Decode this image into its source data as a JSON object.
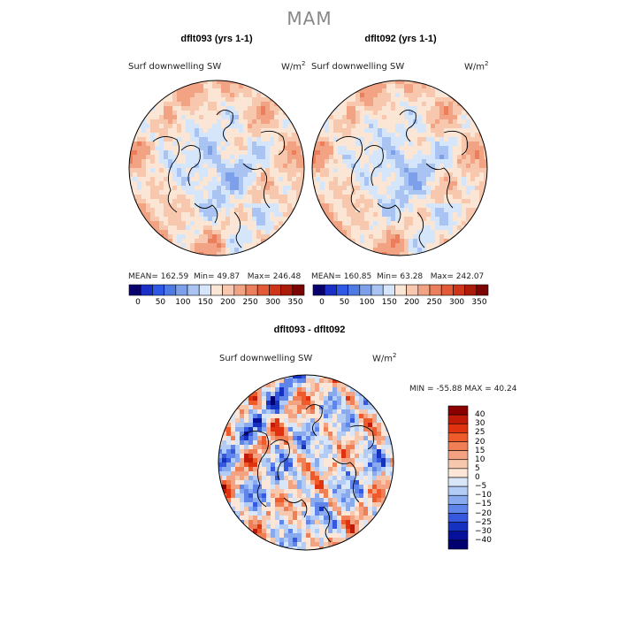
{
  "figure": {
    "title": "MAM"
  },
  "chart_data": [
    {
      "type": "heatmap",
      "projection": "polar-stereographic",
      "title": "dflt093 (yrs 1-1)",
      "variable": "Surf downwelling SW",
      "units_base": "W/m",
      "units_exp": "2",
      "stats": {
        "mean_label": "MEAN=",
        "mean": "162.59",
        "min_label": "Min=",
        "min": "49.87",
        "max_label": "Max=",
        "max": "246.48"
      },
      "colorbar": {
        "orientation": "horizontal",
        "levels": [
          0,
          25,
          50,
          75,
          100,
          125,
          150,
          175,
          200,
          225,
          250,
          275,
          300,
          325,
          350
        ],
        "tick_labels": [
          "0",
          "50",
          "100",
          "150",
          "200",
          "250",
          "300",
          "350"
        ],
        "colors": [
          "#08006e",
          "#1a2fc8",
          "#2d58e8",
          "#4f7ae6",
          "#7da0ea",
          "#a9c4f2",
          "#d6e6fa",
          "#fbe6d6",
          "#f7c8ad",
          "#f1a384",
          "#ec7e5c",
          "#e25a38",
          "#cf3619",
          "#ac1a0a",
          "#7d0404"
        ]
      }
    },
    {
      "type": "heatmap",
      "projection": "polar-stereographic",
      "title": "dflt092 (yrs 1-1)",
      "variable": "Surf downwelling SW",
      "units_base": "W/m",
      "units_exp": "2",
      "stats": {
        "mean_label": "MEAN=",
        "mean": "160.85",
        "min_label": "Min=",
        "min": "63.28",
        "max_label": "Max=",
        "max": "242.07"
      },
      "colorbar": {
        "orientation": "horizontal",
        "levels": [
          0,
          25,
          50,
          75,
          100,
          125,
          150,
          175,
          200,
          225,
          250,
          275,
          300,
          325,
          350
        ],
        "tick_labels": [
          "0",
          "50",
          "100",
          "150",
          "200",
          "250",
          "300",
          "350"
        ],
        "colors": [
          "#08006e",
          "#1a2fc8",
          "#2d58e8",
          "#4f7ae6",
          "#7da0ea",
          "#a9c4f2",
          "#d6e6fa",
          "#fbe6d6",
          "#f7c8ad",
          "#f1a384",
          "#ec7e5c",
          "#e25a38",
          "#cf3619",
          "#ac1a0a",
          "#7d0404"
        ]
      }
    },
    {
      "type": "heatmap",
      "projection": "polar-stereographic",
      "title": "dflt093 - dflt092",
      "variable": "Surf downwelling SW",
      "units_base": "W/m",
      "units_exp": "2",
      "stats": {
        "min_label": "MIN =",
        "min": "-55.88",
        "max_label": "MAX =",
        "max": "40.24"
      },
      "colorbar": {
        "orientation": "vertical",
        "tick_labels": [
          "40",
          "30",
          "25",
          "20",
          "15",
          "10",
          "5",
          "0",
          "−5",
          "−10",
          "−15",
          "−20",
          "−25",
          "−30",
          "−40"
        ],
        "colors": [
          "#8a0000",
          "#c01b08",
          "#e0320e",
          "#ee5a2a",
          "#f07f55",
          "#f3a381",
          "#f7c7ae",
          "#fbe6d8",
          "#d8e6f8",
          "#b3ccf6",
          "#8aaaf0",
          "#5f85ea",
          "#3558de",
          "#1531c0",
          "#07109a",
          "#000070"
        ]
      }
    }
  ]
}
